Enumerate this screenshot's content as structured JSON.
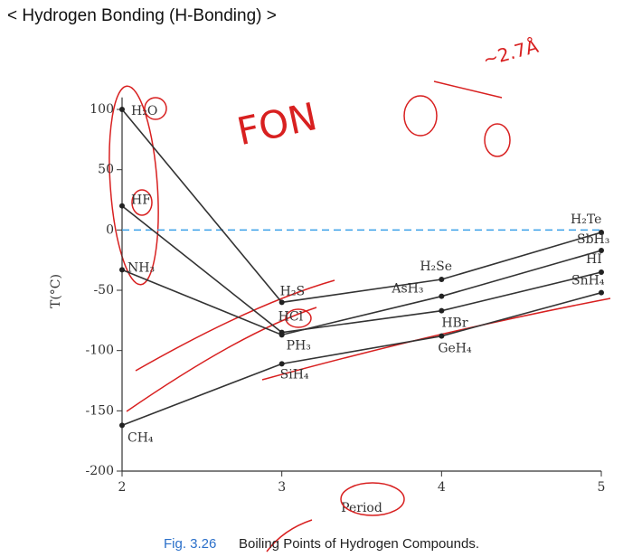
{
  "page_title": "< Hydrogen Bonding (H-Bonding) >",
  "chart_data": {
    "type": "line",
    "x": [
      2,
      3,
      4,
      5
    ],
    "xlim": [
      2,
      5
    ],
    "xticks": [
      2,
      3,
      4,
      5
    ],
    "ylim": [
      -200,
      110
    ],
    "yticks": [
      100,
      50,
      0,
      -50,
      -100,
      -150,
      -200
    ],
    "y_label": "T(°C)",
    "x_label": "Period",
    "reference_line": 0,
    "reference_color": "#3aa0e8",
    "color": "#333333",
    "series": [
      {
        "labels": [
          "H₂O",
          "H₂S",
          "H₂Se",
          "H₂Te"
        ],
        "values": [
          100,
          -60,
          -41,
          -2
        ]
      },
      {
        "labels": [
          "HF",
          "HCl",
          "HBr",
          "HI"
        ],
        "values": [
          20,
          -85,
          -67,
          -35
        ]
      },
      {
        "labels": [
          "NH₃",
          "PH₃",
          "AsH₃",
          "SbH₃"
        ],
        "values": [
          -33,
          -87,
          -55,
          -17
        ]
      },
      {
        "labels": [
          "CH₄",
          "SiH₄",
          "GeH₄",
          "SnH₄"
        ],
        "values": [
          -162,
          -111,
          -88,
          -52
        ]
      }
    ],
    "annotations": [
      "FON",
      "~2.7Å"
    ],
    "caption_number": "Fig. 3.26",
    "caption": "Boiling Points of Hydrogen Compounds."
  }
}
